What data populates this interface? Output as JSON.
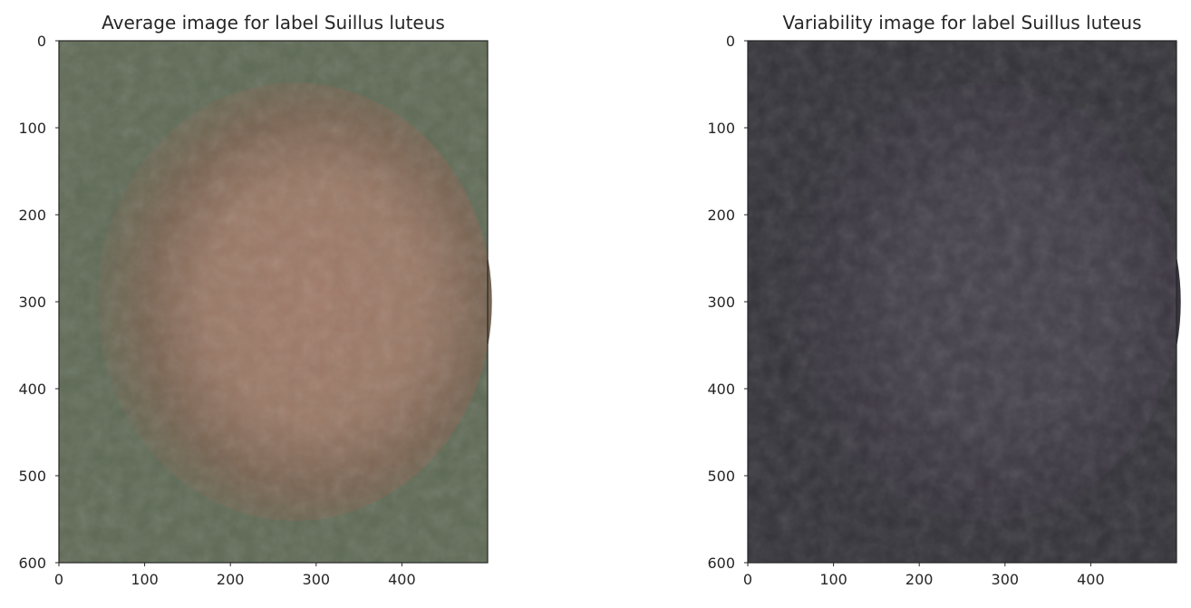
{
  "chart_data": [
    {
      "type": "image",
      "title": "Average image for label Suillus luteus",
      "xlim": [
        0,
        500
      ],
      "ylim": [
        600,
        0
      ],
      "x_ticks": [
        0,
        100,
        200,
        300,
        400
      ],
      "y_ticks": [
        0,
        100,
        200,
        300,
        400,
        500,
        600
      ],
      "grid": false,
      "colors": {
        "background": "#5f6a55",
        "center": "#a07a68",
        "ring": "#7a6452"
      }
    },
    {
      "type": "image",
      "title": "Variability image for label Suillus luteus",
      "xlim": [
        0,
        500
      ],
      "ylim": [
        600,
        0
      ],
      "x_ticks": [
        0,
        100,
        200,
        300,
        400
      ],
      "y_ticks": [
        0,
        100,
        200,
        300,
        400,
        500,
        600
      ],
      "grid": false,
      "colors": {
        "background": "#323238",
        "center": "#44404a",
        "ring": "#3a3540"
      }
    }
  ]
}
